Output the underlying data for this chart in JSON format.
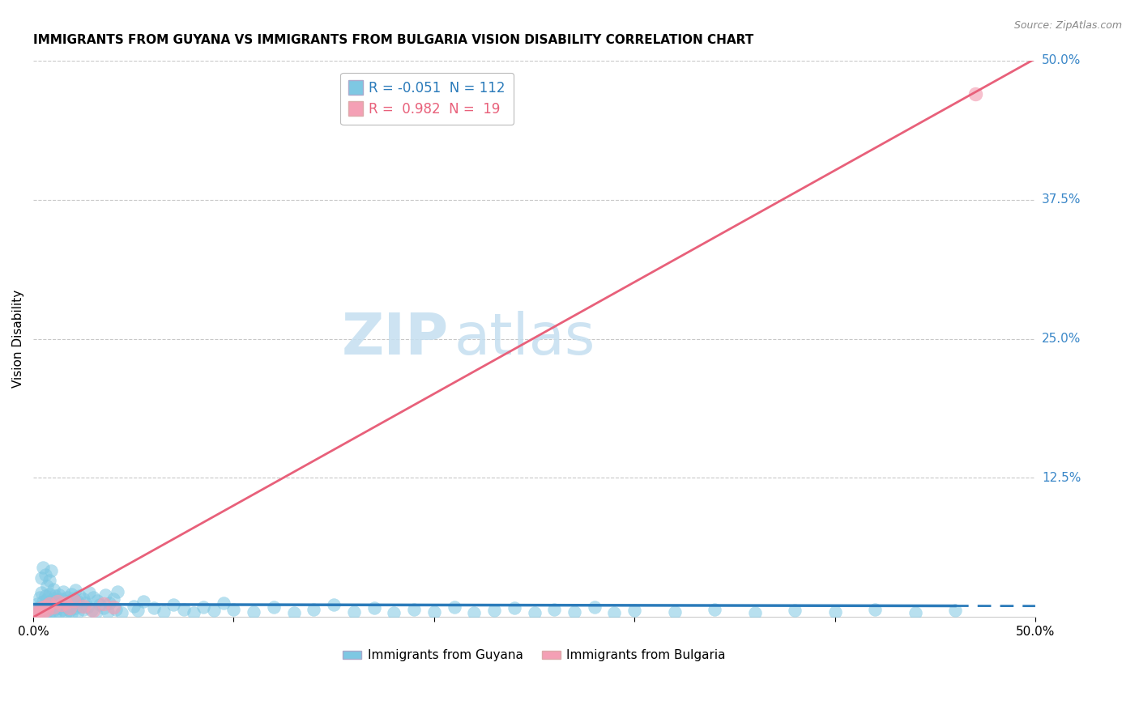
{
  "title": "IMMIGRANTS FROM GUYANA VS IMMIGRANTS FROM BULGARIA VISION DISABILITY CORRELATION CHART",
  "source": "Source: ZipAtlas.com",
  "ylabel": "Vision Disability",
  "xlim": [
    0.0,
    0.5
  ],
  "ylim": [
    0.0,
    0.5
  ],
  "ytick_labels_right": [
    "12.5%",
    "25.0%",
    "37.5%",
    "50.0%"
  ],
  "ytick_vals_right": [
    0.125,
    0.25,
    0.375,
    0.5
  ],
  "guyana_color": "#7ec8e3",
  "bulgaria_color": "#f4a0b5",
  "guyana_R": -0.051,
  "guyana_N": 112,
  "bulgaria_R": 0.982,
  "bulgaria_N": 19,
  "guyana_line_color": "#2b7bba",
  "bulgaria_line_color": "#e8607a",
  "grid_color": "#c8c8c8",
  "background_color": "#ffffff",
  "guyana_dots": [
    [
      0.001,
      0.005
    ],
    [
      0.002,
      0.008
    ],
    [
      0.002,
      0.012
    ],
    [
      0.003,
      0.006
    ],
    [
      0.003,
      0.018
    ],
    [
      0.003,
      0.004
    ],
    [
      0.004,
      0.022
    ],
    [
      0.004,
      0.009
    ],
    [
      0.004,
      0.035
    ],
    [
      0.005,
      0.014
    ],
    [
      0.005,
      0.007
    ],
    [
      0.005,
      0.045
    ],
    [
      0.006,
      0.019
    ],
    [
      0.006,
      0.003
    ],
    [
      0.006,
      0.038
    ],
    [
      0.007,
      0.016
    ],
    [
      0.007,
      0.011
    ],
    [
      0.007,
      0.028
    ],
    [
      0.008,
      0.021
    ],
    [
      0.008,
      0.004
    ],
    [
      0.008,
      0.033
    ],
    [
      0.009,
      0.015
    ],
    [
      0.009,
      0.009
    ],
    [
      0.009,
      0.042
    ],
    [
      0.01,
      0.017
    ],
    [
      0.01,
      0.006
    ],
    [
      0.01,
      0.025
    ],
    [
      0.011,
      0.012
    ],
    [
      0.011,
      0.003
    ],
    [
      0.011,
      0.019
    ],
    [
      0.012,
      0.008
    ],
    [
      0.012,
      0.014
    ],
    [
      0.013,
      0.02
    ],
    [
      0.013,
      0.005
    ],
    [
      0.014,
      0.016
    ],
    [
      0.014,
      0.011
    ],
    [
      0.015,
      0.007
    ],
    [
      0.015,
      0.023
    ],
    [
      0.016,
      0.013
    ],
    [
      0.016,
      0.004
    ],
    [
      0.017,
      0.018
    ],
    [
      0.017,
      0.009
    ],
    [
      0.018,
      0.015
    ],
    [
      0.018,
      0.006
    ],
    [
      0.019,
      0.021
    ],
    [
      0.019,
      0.003
    ],
    [
      0.02,
      0.012
    ],
    [
      0.02,
      0.017
    ],
    [
      0.021,
      0.008
    ],
    [
      0.021,
      0.024
    ],
    [
      0.022,
      0.014
    ],
    [
      0.022,
      0.005
    ],
    [
      0.023,
      0.019
    ],
    [
      0.024,
      0.01
    ],
    [
      0.025,
      0.007
    ],
    [
      0.025,
      0.016
    ],
    [
      0.026,
      0.013
    ],
    [
      0.027,
      0.009
    ],
    [
      0.028,
      0.022
    ],
    [
      0.029,
      0.006
    ],
    [
      0.03,
      0.018
    ],
    [
      0.031,
      0.004
    ],
    [
      0.032,
      0.015
    ],
    [
      0.033,
      0.011
    ],
    [
      0.035,
      0.008
    ],
    [
      0.036,
      0.02
    ],
    [
      0.037,
      0.005
    ],
    [
      0.038,
      0.013
    ],
    [
      0.04,
      0.016
    ],
    [
      0.041,
      0.007
    ],
    [
      0.042,
      0.023
    ],
    [
      0.044,
      0.004
    ],
    [
      0.05,
      0.01
    ],
    [
      0.052,
      0.006
    ],
    [
      0.055,
      0.014
    ],
    [
      0.06,
      0.008
    ],
    [
      0.065,
      0.005
    ],
    [
      0.07,
      0.011
    ],
    [
      0.075,
      0.007
    ],
    [
      0.08,
      0.004
    ],
    [
      0.085,
      0.009
    ],
    [
      0.09,
      0.006
    ],
    [
      0.095,
      0.013
    ],
    [
      0.1,
      0.007
    ],
    [
      0.11,
      0.005
    ],
    [
      0.12,
      0.009
    ],
    [
      0.13,
      0.004
    ],
    [
      0.14,
      0.007
    ],
    [
      0.15,
      0.011
    ],
    [
      0.16,
      0.005
    ],
    [
      0.17,
      0.008
    ],
    [
      0.18,
      0.004
    ],
    [
      0.19,
      0.007
    ],
    [
      0.2,
      0.005
    ],
    [
      0.21,
      0.009
    ],
    [
      0.22,
      0.004
    ],
    [
      0.23,
      0.006
    ],
    [
      0.24,
      0.008
    ],
    [
      0.25,
      0.004
    ],
    [
      0.26,
      0.007
    ],
    [
      0.27,
      0.005
    ],
    [
      0.28,
      0.009
    ],
    [
      0.29,
      0.004
    ],
    [
      0.3,
      0.006
    ],
    [
      0.32,
      0.005
    ],
    [
      0.34,
      0.007
    ],
    [
      0.36,
      0.004
    ],
    [
      0.38,
      0.006
    ],
    [
      0.4,
      0.005
    ],
    [
      0.42,
      0.007
    ],
    [
      0.44,
      0.004
    ],
    [
      0.46,
      0.006
    ]
  ],
  "bulgaria_dots": [
    [
      0.001,
      0.003
    ],
    [
      0.002,
      0.006
    ],
    [
      0.003,
      0.004
    ],
    [
      0.004,
      0.008
    ],
    [
      0.005,
      0.005
    ],
    [
      0.006,
      0.01
    ],
    [
      0.007,
      0.007
    ],
    [
      0.008,
      0.012
    ],
    [
      0.01,
      0.009
    ],
    [
      0.012,
      0.014
    ],
    [
      0.014,
      0.011
    ],
    [
      0.016,
      0.013
    ],
    [
      0.018,
      0.008
    ],
    [
      0.02,
      0.015
    ],
    [
      0.025,
      0.01
    ],
    [
      0.03,
      0.006
    ],
    [
      0.035,
      0.012
    ],
    [
      0.04,
      0.009
    ],
    [
      0.47,
      0.47
    ]
  ],
  "guyana_line_slope": -0.003,
  "guyana_line_intercept": 0.0115,
  "bulgaria_line_slope": 1.003,
  "bulgaria_line_intercept": 0.0
}
